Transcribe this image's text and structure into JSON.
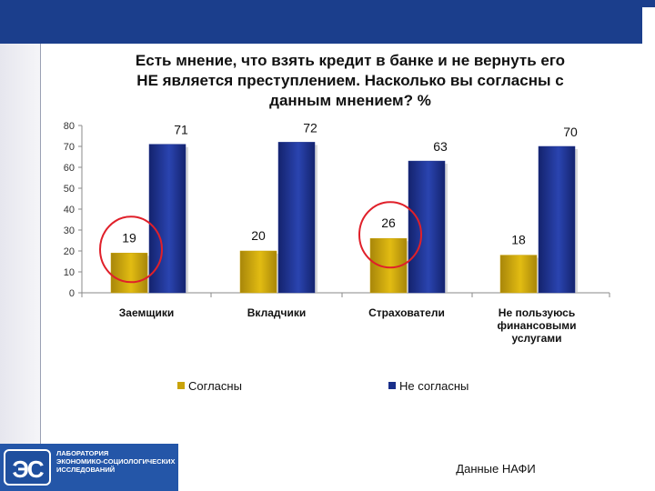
{
  "title_lines": [
    "Есть мнение, что взять кредит в банке и не вернуть его",
    "НЕ является преступлением. Насколько вы согласны с",
    "данным мнением? %"
  ],
  "logo": {
    "mark": "ЭС",
    "lines": [
      "ЛАБОРАТОРИЯ",
      "ЭКОНОМИКО-СОЦИОЛОГИЧЕСКИХ",
      "ИССЛЕДОВАНИЙ"
    ]
  },
  "source": "Данные НАФИ",
  "colors": {
    "agree": "#c9a30a",
    "disagree": "#1a2f8a",
    "highlight_circle": "#e0202a",
    "header": "#1b3e8c"
  },
  "chart_data": {
    "type": "bar",
    "title": "Есть мнение, что взять кредит в банке и не вернуть его НЕ является преступлением. Насколько вы согласны с данным мнением? %",
    "categories": [
      [
        "Заемщики"
      ],
      [
        "Вкладчики"
      ],
      [
        "Страхователи"
      ],
      [
        "Не пользуюсь",
        "финансовыми",
        "услугами"
      ]
    ],
    "series": [
      {
        "name": "Согласны",
        "values": [
          19,
          20,
          26,
          18
        ]
      },
      {
        "name": "Не согласны",
        "values": [
          71,
          72,
          63,
          70
        ]
      }
    ],
    "ylim": [
      0,
      80
    ],
    "yticks": [
      0,
      10,
      20,
      30,
      40,
      50,
      60,
      70,
      80
    ],
    "legend": "bottom",
    "highlighted": [
      0,
      2
    ]
  }
}
